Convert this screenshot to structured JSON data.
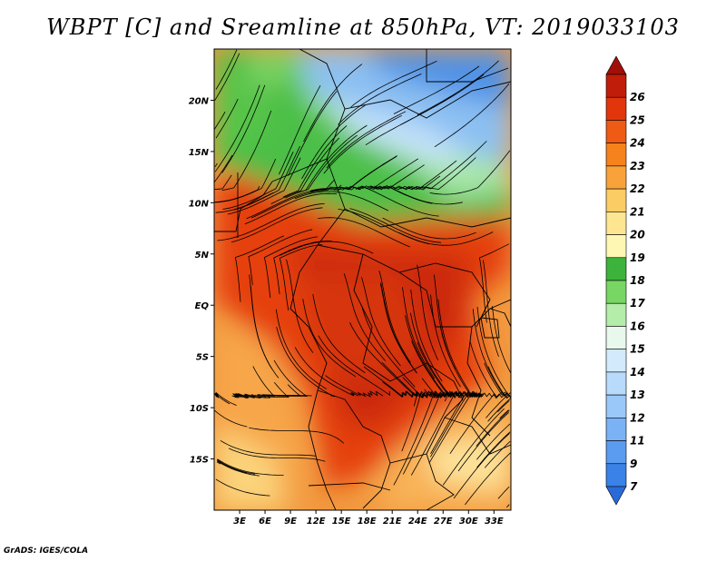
{
  "title": "WBPT [C] and Sreamline at 850hPa, VT: 2019033103",
  "footer": "GrADS: IGES/COLA",
  "map": {
    "lon_range": [
      0,
      35
    ],
    "lat_range": [
      -20,
      25
    ],
    "lon_ticks": [
      {
        "value": 3,
        "label": "3E"
      },
      {
        "value": 6,
        "label": "6E"
      },
      {
        "value": 9,
        "label": "9E"
      },
      {
        "value": 12,
        "label": "12E"
      },
      {
        "value": 15,
        "label": "15E"
      },
      {
        "value": 18,
        "label": "18E"
      },
      {
        "value": 21,
        "label": "21E"
      },
      {
        "value": 24,
        "label": "24E"
      },
      {
        "value": 27,
        "label": "27E"
      },
      {
        "value": 30,
        "label": "30E"
      },
      {
        "value": 33,
        "label": "33E"
      }
    ],
    "lat_ticks": [
      {
        "value": 20,
        "label": "20N"
      },
      {
        "value": 15,
        "label": "15N"
      },
      {
        "value": 10,
        "label": "10N"
      },
      {
        "value": 5,
        "label": "5N"
      },
      {
        "value": 0,
        "label": "EQ"
      },
      {
        "value": -5,
        "label": "5S"
      },
      {
        "value": -10,
        "label": "10S"
      },
      {
        "value": -15,
        "label": "15S"
      }
    ]
  },
  "colorbar": {
    "levels": [
      {
        "label": "",
        "color": "#2a6ad8"
      },
      {
        "label": "7",
        "color": "#3a82e8"
      },
      {
        "label": "9",
        "color": "#5b9cf0"
      },
      {
        "label": "11",
        "color": "#7ab2f5"
      },
      {
        "label": "12",
        "color": "#9ac8f8"
      },
      {
        "label": "13",
        "color": "#b8dafb"
      },
      {
        "label": "14",
        "color": "#d2eafc"
      },
      {
        "label": "15",
        "color": "#e8f8ec"
      },
      {
        "label": "16",
        "color": "#b4ecaa"
      },
      {
        "label": "17",
        "color": "#78d664"
      },
      {
        "label": "18",
        "color": "#3cb43c"
      },
      {
        "label": "19",
        "color": "#fef7b4"
      },
      {
        "label": "20",
        "color": "#fee690"
      },
      {
        "label": "21",
        "color": "#fccc64"
      },
      {
        "label": "22",
        "color": "#f9a23a"
      },
      {
        "label": "23",
        "color": "#f5821c"
      },
      {
        "label": "24",
        "color": "#ef5a14"
      },
      {
        "label": "25",
        "color": "#e2350c"
      },
      {
        "label": "26",
        "color": "#c01e0a"
      },
      {
        "label": "",
        "color": "#a01008"
      }
    ]
  }
}
